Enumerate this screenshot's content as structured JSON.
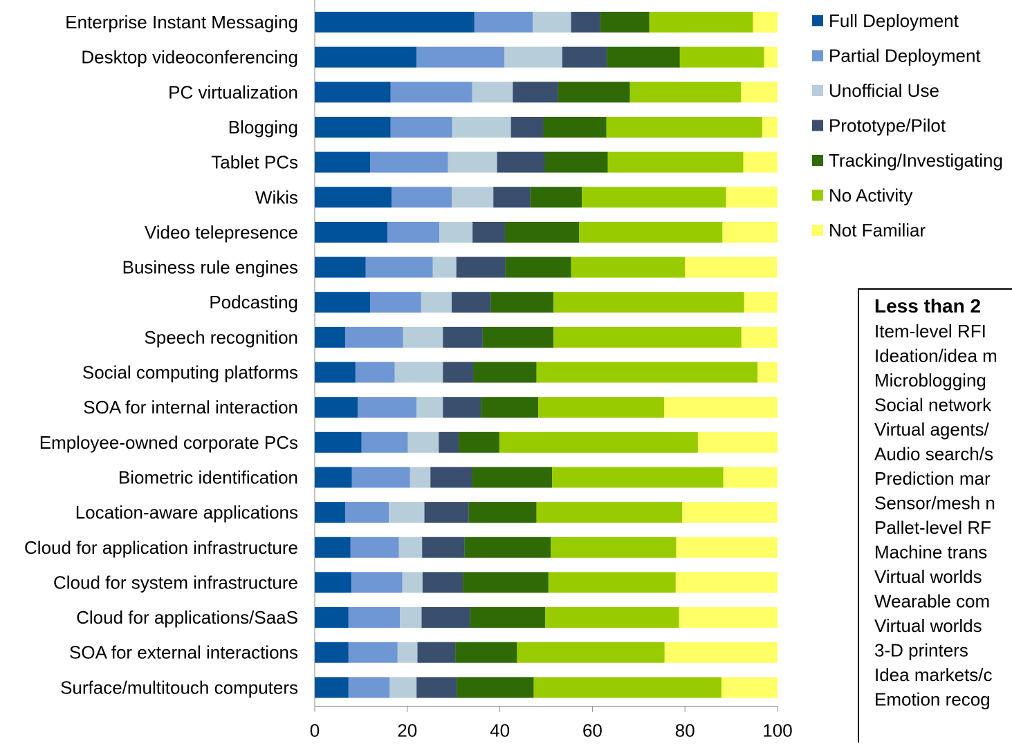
{
  "chart_data": {
    "type": "bar",
    "orientation": "horizontal",
    "stacked": true,
    "title": "",
    "xlabel": "",
    "ylabel": "",
    "xlim": [
      0,
      100
    ],
    "x_ticks": [
      "0",
      "20",
      "40",
      "60",
      "80",
      "100"
    ],
    "grid": false,
    "legend_position": "right",
    "categories": [
      "Enterprise Instant Messaging",
      "Desktop videoconferencing",
      "PC virtualization",
      "Blogging",
      "Tablet PCs",
      "Wikis",
      "Video telepresence",
      "Business rule engines",
      "Podcasting",
      "Speech recognition",
      "Social computing platforms",
      "SOA for internal interaction",
      "Employee-owned corporate PCs",
      "Biometric identification",
      "Location-aware applications",
      "Cloud for application infrastructure",
      "Cloud for system infrastructure",
      "Cloud for applications/SaaS",
      "SOA for external interactions",
      "Surface/multitouch computers"
    ],
    "series": [
      {
        "name": "Full Deployment",
        "color": "#00529B",
        "values": [
          34.5,
          22.0,
          16.4,
          16.4,
          12.0,
          16.6,
          15.7,
          11.0,
          12.0,
          6.6,
          8.8,
          9.3,
          10.1,
          8.0,
          6.6,
          7.7,
          7.9,
          7.3,
          7.3,
          7.3
        ]
      },
      {
        "name": "Partial Deployment",
        "color": "#6F97D4",
        "values": [
          12.6,
          19.0,
          17.6,
          13.3,
          16.8,
          13.0,
          11.2,
          14.5,
          11.0,
          12.5,
          8.5,
          12.7,
          10.0,
          12.6,
          9.4,
          10.5,
          11.0,
          11.1,
          10.6,
          8.9
        ]
      },
      {
        "name": "Unofficial Use",
        "color": "#B7CDDA",
        "values": [
          8.3,
          12.5,
          8.8,
          12.7,
          10.6,
          9.0,
          7.2,
          5.1,
          6.6,
          8.6,
          10.4,
          5.7,
          6.7,
          4.4,
          7.7,
          5.0,
          4.4,
          4.7,
          4.3,
          5.8
        ]
      },
      {
        "name": "Prototype/Pilot",
        "color": "#3A4E6E",
        "values": [
          6.3,
          9.6,
          9.8,
          7.0,
          10.3,
          8.0,
          7.0,
          10.6,
          8.4,
          8.6,
          6.6,
          8.2,
          4.3,
          9.0,
          9.6,
          9.2,
          8.7,
          10.5,
          8.2,
          8.7
        ]
      },
      {
        "name": "Tracking/Investigating",
        "color": "#2F6A06",
        "values": [
          10.6,
          15.8,
          15.5,
          13.6,
          13.6,
          11.1,
          16.0,
          14.2,
          13.6,
          15.3,
          13.6,
          12.4,
          8.8,
          17.3,
          14.6,
          18.6,
          18.5,
          16.2,
          13.3,
          16.6
        ]
      },
      {
        "name": "No Activity",
        "color": "#99CC00",
        "values": [
          22.4,
          18.2,
          24.0,
          33.7,
          29.3,
          31.2,
          31.0,
          24.6,
          41.2,
          40.6,
          47.8,
          27.2,
          42.9,
          37.0,
          31.5,
          27.1,
          27.5,
          28.9,
          31.9,
          40.6
        ]
      },
      {
        "name": "Not Familiar",
        "color": "#FFFF66",
        "values": [
          5.3,
          2.9,
          7.9,
          3.3,
          7.4,
          11.1,
          11.9,
          19.9,
          7.2,
          7.8,
          4.3,
          24.5,
          17.2,
          11.7,
          20.6,
          21.9,
          22.0,
          21.3,
          24.4,
          12.1
        ]
      }
    ]
  },
  "side_box": {
    "title": "Less than 2",
    "items": [
      "Item-level RFI",
      "Ideation/idea m",
      "Microblogging",
      "Social network",
      "Virtual agents/",
      "Audio search/s",
      "Prediction mar",
      "Sensor/mesh n",
      "Pallet-level RF",
      "Machine trans",
      "Virtual worlds",
      "Wearable com",
      "Virtual worlds",
      "3-D printers",
      "Idea markets/c",
      "Emotion recog"
    ]
  }
}
